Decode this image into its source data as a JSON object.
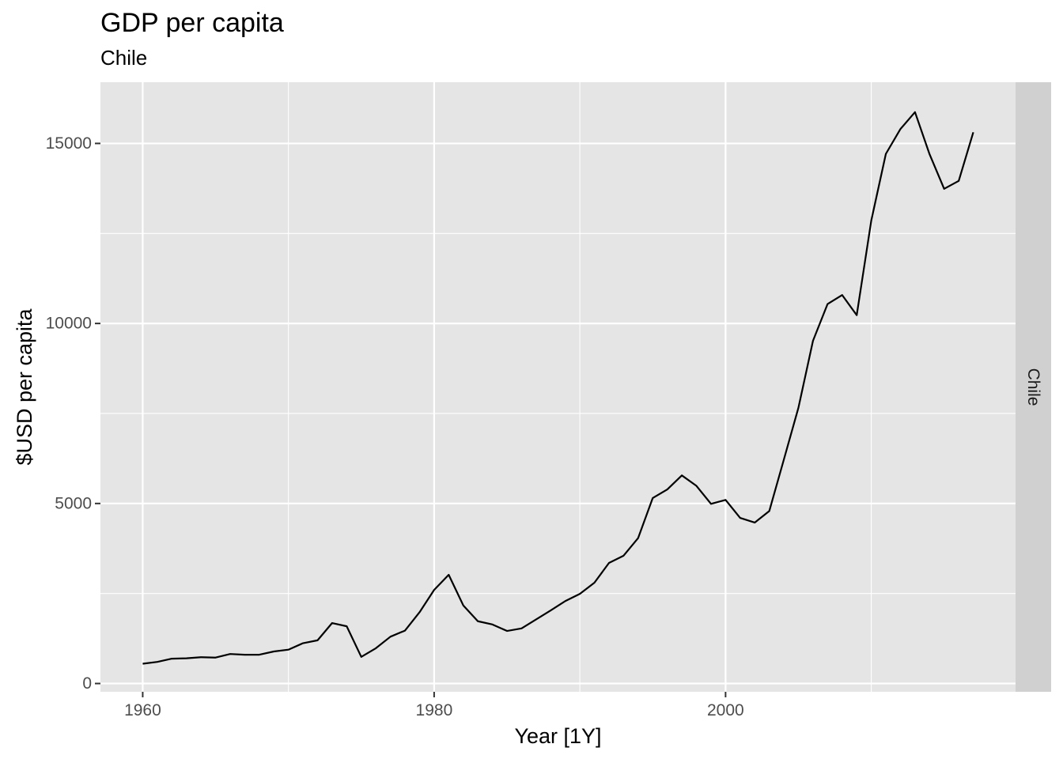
{
  "chart_data": {
    "type": "line",
    "title": "GDP per capita",
    "subtitle": "Chile",
    "xlabel": "Year [1Y]",
    "ylabel": "$USD per capita",
    "facet_label": "Chile",
    "xlim": [
      1957.1,
      2019.9
    ],
    "ylim": [
      -230,
      16700
    ],
    "x_ticks": [
      1960,
      1980,
      2000
    ],
    "x_minor_ticks": [
      1970,
      1990,
      2010
    ],
    "y_ticks": [
      0,
      5000,
      10000,
      15000
    ],
    "y_minor_ticks": [
      2500,
      7500,
      12500
    ],
    "grid": true,
    "legend": "none",
    "colors": {
      "panel_bg": "#e5e5e5",
      "grid": "#ffffff",
      "strip_bg": "#d0d0d0",
      "line": "#000000"
    },
    "series": [
      {
        "x": [
          1960,
          1961,
          1962,
          1963,
          1964,
          1965,
          1966,
          1967,
          1968,
          1969,
          1970,
          1971,
          1972,
          1973,
          1974,
          1975,
          1976,
          1977,
          1978,
          1979,
          1980,
          1981,
          1982,
          1983,
          1984,
          1985,
          1986,
          1987,
          1988,
          1989,
          1990,
          1991,
          1992,
          1993,
          1994,
          1995,
          1996,
          1997,
          1998,
          1999,
          2000,
          2001,
          2002,
          2003,
          2004,
          2005,
          2006,
          2007,
          2008,
          2009,
          2010,
          2011,
          2012,
          2013,
          2014,
          2015,
          2016,
          2017
        ],
        "y": [
          550,
          600,
          690,
          700,
          730,
          720,
          820,
          800,
          800,
          890,
          940,
          1120,
          1200,
          1680,
          1590,
          740,
          980,
          1300,
          1470,
          1980,
          2600,
          3020,
          2170,
          1730,
          1640,
          1460,
          1530,
          1780,
          2030,
          2290,
          2490,
          2800,
          3350,
          3550,
          4040,
          5150,
          5390,
          5780,
          5490,
          4990,
          5100,
          4600,
          4470,
          4790,
          6220,
          7660,
          9520,
          10540,
          10790,
          10230,
          12860,
          14710,
          15400,
          15870,
          14700,
          13740,
          13960,
          15310
        ]
      }
    ]
  }
}
